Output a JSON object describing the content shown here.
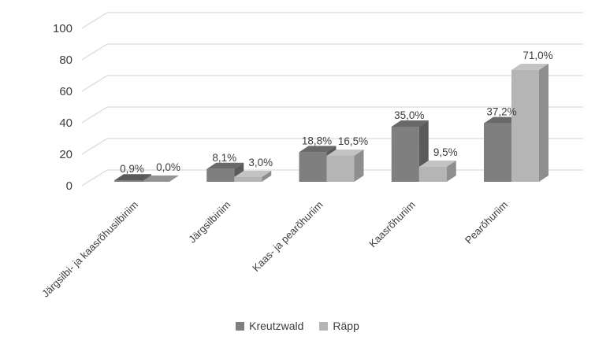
{
  "chart_data": {
    "type": "bar",
    "variant": "3d-clustered-column",
    "title": "",
    "xlabel": "",
    "ylabel": "",
    "categories": [
      "Järgsilbi- ja kaasrõhusilbiriim",
      "Järgsilbiriim",
      "Kaas- ja pearõhuriim",
      "Kaasrõhuriim",
      "Pearõhuriim"
    ],
    "series": [
      {
        "name": "Kreutzwald",
        "values": [
          0.9,
          8.1,
          18.8,
          35.0,
          37.2
        ],
        "data_labels": [
          "0,9%",
          "8,1%",
          "18,8%",
          "35,0%",
          "37,2%"
        ],
        "colors": {
          "front": "#7f7f7f",
          "top": "#696969",
          "side": "#5a5a5a",
          "flat_top": "#5a5a5a"
        }
      },
      {
        "name": "Räpp",
        "values": [
          0.0,
          3.0,
          16.5,
          9.5,
          71.0
        ],
        "data_labels": [
          "0,0%",
          "3,0%",
          "16,5%",
          "9,5%",
          "71,0%"
        ],
        "colors": {
          "front": "#b5b5b5",
          "top": "#c3c3c3",
          "side": "#8e8e8e",
          "flat_top": "#949494"
        }
      }
    ],
    "y_axis": {
      "ticks": [
        0,
        20,
        40,
        60,
        80,
        100
      ],
      "min": 0,
      "max": 100,
      "tick_labels": [
        "0",
        "20",
        "40",
        "60",
        "80",
        "100"
      ]
    },
    "grid": {
      "visible": true,
      "color": "#d9d9d9"
    },
    "text_color": "#3c3c3c",
    "background_color": "#ffffff",
    "legend_position": "bottom"
  }
}
